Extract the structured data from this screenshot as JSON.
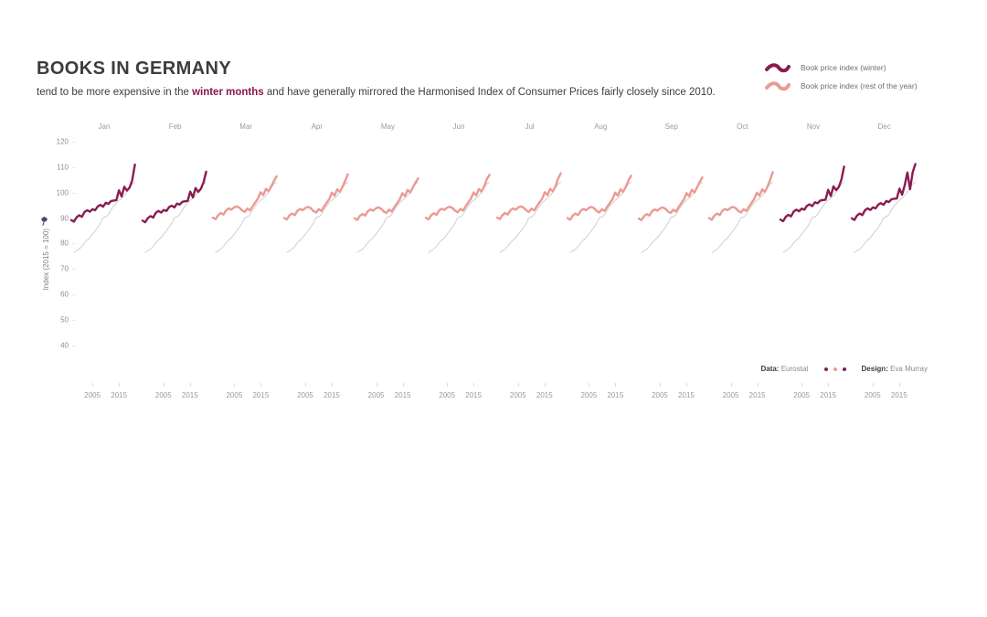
{
  "title": "BOOKS IN GERMANY",
  "subtitle": {
    "prefix": "tend to be more expensive in the ",
    "highlight": "winter months",
    "suffix": " and have generally mirrored the Harmonised Index of Consumer Prices fairly closely since 2010."
  },
  "legend": {
    "items": [
      {
        "label": "Book price index (winter)",
        "series": "winter"
      },
      {
        "label": "Book price index (rest of the year)",
        "series": "rest"
      }
    ]
  },
  "y_axis": {
    "title": "Index (2015 = 100)",
    "icon": "pin-icon"
  },
  "credits": {
    "data_label": "Data:",
    "data_value": "Eurostat",
    "design_label": "Design:",
    "design_value": "Eva Murray",
    "dot_colors": [
      "#8a1c52",
      "#eb9a93",
      "#8a1c52"
    ]
  },
  "colors": {
    "winter": "#8a1c52",
    "rest": "#eb9a93",
    "hicp": "#cbcbcb",
    "highlight_text": "#8a174b"
  },
  "chart_data": {
    "type": "line",
    "small_multiples": true,
    "title": "Book price index vs Harmonised Index of Consumer Prices, Germany, by month",
    "ylabel": "Index (2015 = 100)",
    "ylim": [
      40,
      120
    ],
    "y_ticks": [
      120,
      110,
      100,
      90,
      80,
      70,
      60,
      50,
      40
    ],
    "x": [
      1997,
      1998,
      1999,
      2000,
      2001,
      2002,
      2003,
      2004,
      2005,
      2006,
      2007,
      2008,
      2009,
      2010,
      2011,
      2012,
      2013,
      2014,
      2015,
      2016,
      2017,
      2018,
      2019,
      2020,
      2021
    ],
    "x_tick_years": [
      2005,
      2015
    ],
    "x_tick_labels": [
      "2005",
      "2015"
    ],
    "grid": false,
    "series_names": {
      "book_winter": "Book price index (winter)",
      "book_rest": "Book price index (rest of the year)",
      "hicp": "Harmonised Index of Consumer Prices"
    },
    "hicp_start_year": 1998,
    "hicp": [
      76.5,
      77.2,
      77.8,
      78.9,
      80.3,
      81.4,
      82.3,
      83.7,
      85.0,
      86.4,
      88.0,
      90.2,
      90.4,
      91.4,
      93.2,
      94.8,
      96.0,
      97.0,
      97.8,
      98.8,
      100.2,
      101.9,
      103.4,
      104.1
    ],
    "months": [
      {
        "label": "Jan",
        "season": "winter",
        "values": [
          89.2,
          88.6,
          90.3,
          91.1,
          90.5,
          92.4,
          93.1,
          92.5,
          93.5,
          93.1,
          94.6,
          95.2,
          94.5,
          96.0,
          95.6,
          96.7,
          96.9,
          97.0,
          100.9,
          98.5,
          102.3,
          100.8,
          102.0,
          104.9,
          111.0
        ]
      },
      {
        "label": "Feb",
        "season": "winter",
        "values": [
          89.0,
          88.4,
          90.0,
          90.8,
          90.2,
          92.1,
          92.8,
          92.2,
          93.2,
          92.8,
          94.3,
          94.9,
          94.2,
          95.7,
          95.3,
          96.4,
          96.6,
          96.7,
          100.4,
          98.1,
          101.8,
          100.3,
          101.5,
          104.0,
          108.2
        ]
      },
      {
        "label": "Mar",
        "season": "rest",
        "values": [
          90.2,
          89.6,
          91.2,
          92.0,
          91.4,
          93.1,
          93.8,
          93.3,
          94.2,
          94.6,
          94.1,
          93.0,
          92.4,
          93.7,
          93.0,
          94.7,
          96.2,
          97.7,
          100.2,
          99.0,
          101.5,
          100.5,
          102.5,
          104.5,
          106.4
        ]
      },
      {
        "label": "Apr",
        "season": "rest",
        "values": [
          90.0,
          89.5,
          91.1,
          91.8,
          91.2,
          92.9,
          93.6,
          93.1,
          94.0,
          94.4,
          93.9,
          92.8,
          92.2,
          93.5,
          92.8,
          94.5,
          96.0,
          97.5,
          100.0,
          98.8,
          101.3,
          100.3,
          102.3,
          104.6,
          107.2
        ]
      },
      {
        "label": "May",
        "season": "rest",
        "values": [
          89.9,
          89.3,
          90.9,
          91.6,
          91.0,
          92.7,
          93.4,
          92.9,
          93.8,
          94.2,
          93.7,
          92.6,
          92.0,
          93.3,
          92.6,
          94.3,
          95.8,
          97.3,
          99.8,
          98.6,
          101.1,
          100.1,
          102.1,
          104.0,
          105.6
        ]
      },
      {
        "label": "Jun",
        "season": "rest",
        "values": [
          90.1,
          89.5,
          91.1,
          91.9,
          91.3,
          93.0,
          93.7,
          93.2,
          94.1,
          94.5,
          94.0,
          92.9,
          92.3,
          93.6,
          92.9,
          94.6,
          96.1,
          97.6,
          100.1,
          98.9,
          101.4,
          100.4,
          102.4,
          105.3,
          107.0
        ]
      },
      {
        "label": "Jul",
        "season": "rest",
        "values": [
          90.2,
          89.6,
          91.2,
          92.0,
          91.4,
          93.1,
          93.8,
          93.3,
          94.2,
          94.6,
          94.1,
          93.0,
          92.4,
          93.7,
          93.0,
          94.7,
          96.2,
          97.7,
          100.2,
          99.0,
          101.5,
          100.5,
          102.5,
          105.5,
          107.6
        ]
      },
      {
        "label": "Aug",
        "season": "rest",
        "values": [
          90.0,
          89.4,
          91.0,
          91.8,
          91.2,
          92.9,
          93.6,
          93.1,
          94.0,
          94.4,
          93.9,
          92.8,
          92.2,
          93.5,
          92.8,
          94.5,
          96.0,
          97.5,
          100.0,
          98.8,
          101.3,
          100.3,
          102.3,
          104.8,
          106.6
        ]
      },
      {
        "label": "Sep",
        "season": "rest",
        "values": [
          89.8,
          89.2,
          90.8,
          91.6,
          91.0,
          92.7,
          93.4,
          92.9,
          93.8,
          94.2,
          93.7,
          92.6,
          92.0,
          93.3,
          92.6,
          94.3,
          95.8,
          97.3,
          99.8,
          98.6,
          101.1,
          100.1,
          102.1,
          104.2,
          106.0
        ]
      },
      {
        "label": "Oct",
        "season": "rest",
        "values": [
          90.0,
          89.4,
          91.0,
          91.8,
          91.2,
          92.9,
          93.6,
          93.1,
          94.0,
          94.4,
          93.9,
          92.8,
          92.2,
          93.5,
          92.8,
          94.5,
          96.0,
          97.5,
          100.0,
          98.8,
          101.3,
          100.3,
          102.3,
          105.0,
          108.0
        ]
      },
      {
        "label": "Nov",
        "season": "winter",
        "values": [
          89.4,
          88.8,
          90.5,
          91.3,
          90.7,
          92.6,
          93.3,
          92.7,
          93.7,
          93.3,
          94.8,
          95.4,
          94.7,
          96.2,
          95.8,
          96.9,
          97.1,
          97.2,
          101.1,
          98.7,
          102.5,
          101.0,
          102.2,
          105.1,
          110.2
        ]
      },
      {
        "label": "Dec",
        "season": "winter",
        "values": [
          89.9,
          89.3,
          91.0,
          91.8,
          91.2,
          93.1,
          93.8,
          93.2,
          94.2,
          93.8,
          95.3,
          95.9,
          95.2,
          96.7,
          96.3,
          97.4,
          97.6,
          97.7,
          101.6,
          99.2,
          103.0,
          107.9,
          101.3,
          108.0,
          111.2
        ]
      }
    ]
  }
}
